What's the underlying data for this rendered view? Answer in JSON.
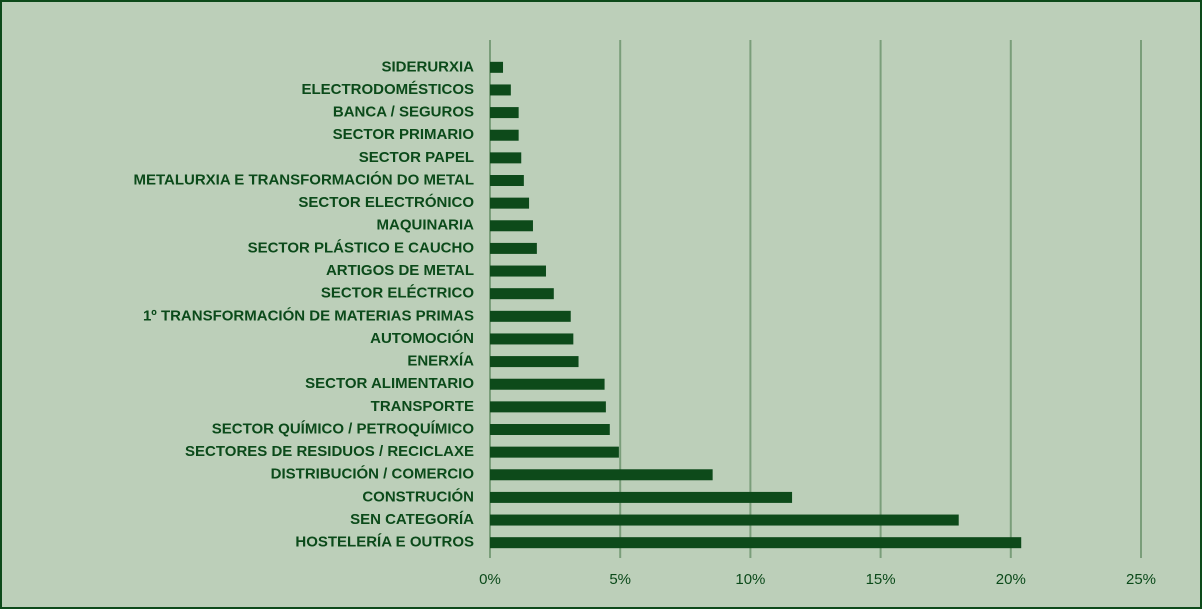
{
  "chart_data": {
    "type": "hbar",
    "categories": [
      "SIDERURXIA",
      "ELECTRODOMÉSTICOS",
      "BANCA / SEGUROS",
      "SECTOR PRIMARIO",
      "SECTOR PAPEL",
      "METALURXIA E TRANSFORMACIÓN DO METAL",
      "SECTOR ELECTRÓNICO",
      "MAQUINARIA",
      "SECTOR PLÁSTICO E CAUCHO",
      "ARTIGOS DE METAL",
      "SECTOR ELÉCTRICO",
      "1º TRANSFORMACIÓN DE MATERIAS PRIMAS",
      "AUTOMOCIÓN",
      "ENERXÍA",
      "SECTOR ALIMENTARIO",
      "TRANSPORTE",
      "SECTOR QUÍMICO / PETROQUÍMICO",
      "SECTORES DE RESIDUOS / RECICLAXE",
      "DISTRIBUCIÓN / COMERCIO",
      "CONSTRUCIÓN",
      "SEN CATEGORÍA",
      "HOSTELERÍA E OUTROS"
    ],
    "values": [
      0.5,
      0.8,
      1.1,
      1.1,
      1.2,
      1.3,
      1.5,
      1.65,
      1.8,
      2.15,
      2.45,
      3.1,
      3.2,
      3.4,
      4.4,
      4.45,
      4.6,
      4.95,
      8.55,
      11.6,
      18.0,
      20.4
    ],
    "color": "#0d4a1a",
    "xlim": [
      0,
      25
    ],
    "xticks": [
      {
        "value": 0,
        "label": "0%"
      },
      {
        "value": 5,
        "label": "5%"
      },
      {
        "value": 10,
        "label": "10%"
      },
      {
        "value": 15,
        "label": "15%"
      },
      {
        "value": 20,
        "label": "20%"
      },
      {
        "value": 25,
        "label": "25%"
      }
    ],
    "grid": true
  }
}
